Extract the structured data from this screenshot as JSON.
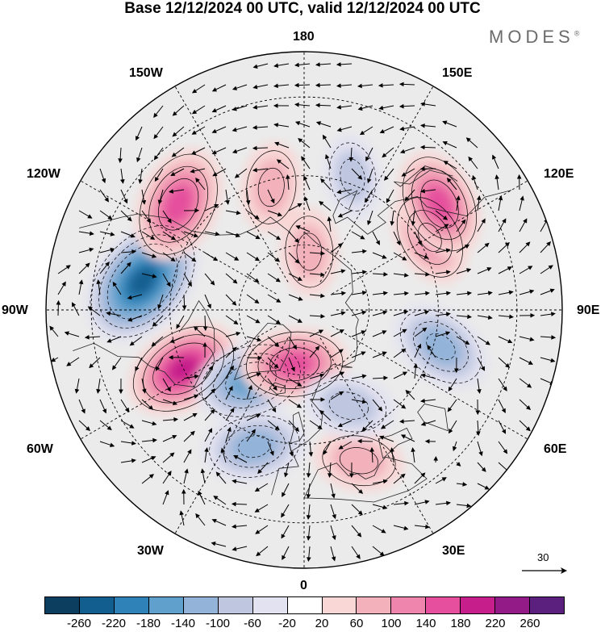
{
  "title": "Base 12/12/2024 00 UTC, valid 12/12/2024 00 UTC",
  "brand": "MODES",
  "brand_mark": "®",
  "lon_labels": {
    "top": "180",
    "top_left": "150W",
    "top_right": "150E",
    "upper_left": "120W",
    "upper_right": "120E",
    "left": "90W",
    "right": "90E",
    "lower_left": "60W",
    "lower_right": "60E",
    "bottom_left": "30W",
    "bottom_right": "30E",
    "bottom": "0"
  },
  "reference_vector": {
    "label": "30"
  },
  "colorbar": {
    "colors": [
      "#0c3f5f",
      "#125f8f",
      "#2f82b8",
      "#5fa0cc",
      "#93b3d9",
      "#bec6e0",
      "#e2e2f0",
      "#ffffff",
      "#f8d7d6",
      "#f2b1bb",
      "#ef84ac",
      "#e54f9d",
      "#c61f8b",
      "#931b87",
      "#5b1f7d"
    ],
    "ticks": [
      "-260",
      "-220",
      "-180",
      "-140",
      "-100",
      "-60",
      "-20",
      "20",
      "60",
      "100",
      "140",
      "180",
      "220",
      "260"
    ]
  },
  "anomaly_centers": [
    {
      "lon": -100,
      "lat": 42,
      "value": -240
    },
    {
      "lon": -130,
      "lat": 42,
      "value": 175
    },
    {
      "lon": -64,
      "lat": 50,
      "value": 180
    },
    {
      "lon": -37,
      "lat": 63,
      "value": -160
    },
    {
      "lon": -20,
      "lat": 47,
      "value": -130
    },
    {
      "lon": -10,
      "lat": 73,
      "value": 140
    },
    {
      "lon": 20,
      "lat": 43,
      "value": 80
    },
    {
      "lon": 25,
      "lat": 58,
      "value": -90
    },
    {
      "lon": 75,
      "lat": 48,
      "value": -130
    },
    {
      "lon": 120,
      "lat": 47,
      "value": 110
    },
    {
      "lon": 128,
      "lat": 40,
      "value": 150
    },
    {
      "lon": 175,
      "lat": 72,
      "value": 70
    },
    {
      "lon": -165,
      "lat": 52,
      "value": 80
    },
    {
      "lon": 160,
      "lat": 48,
      "value": -60
    }
  ]
}
